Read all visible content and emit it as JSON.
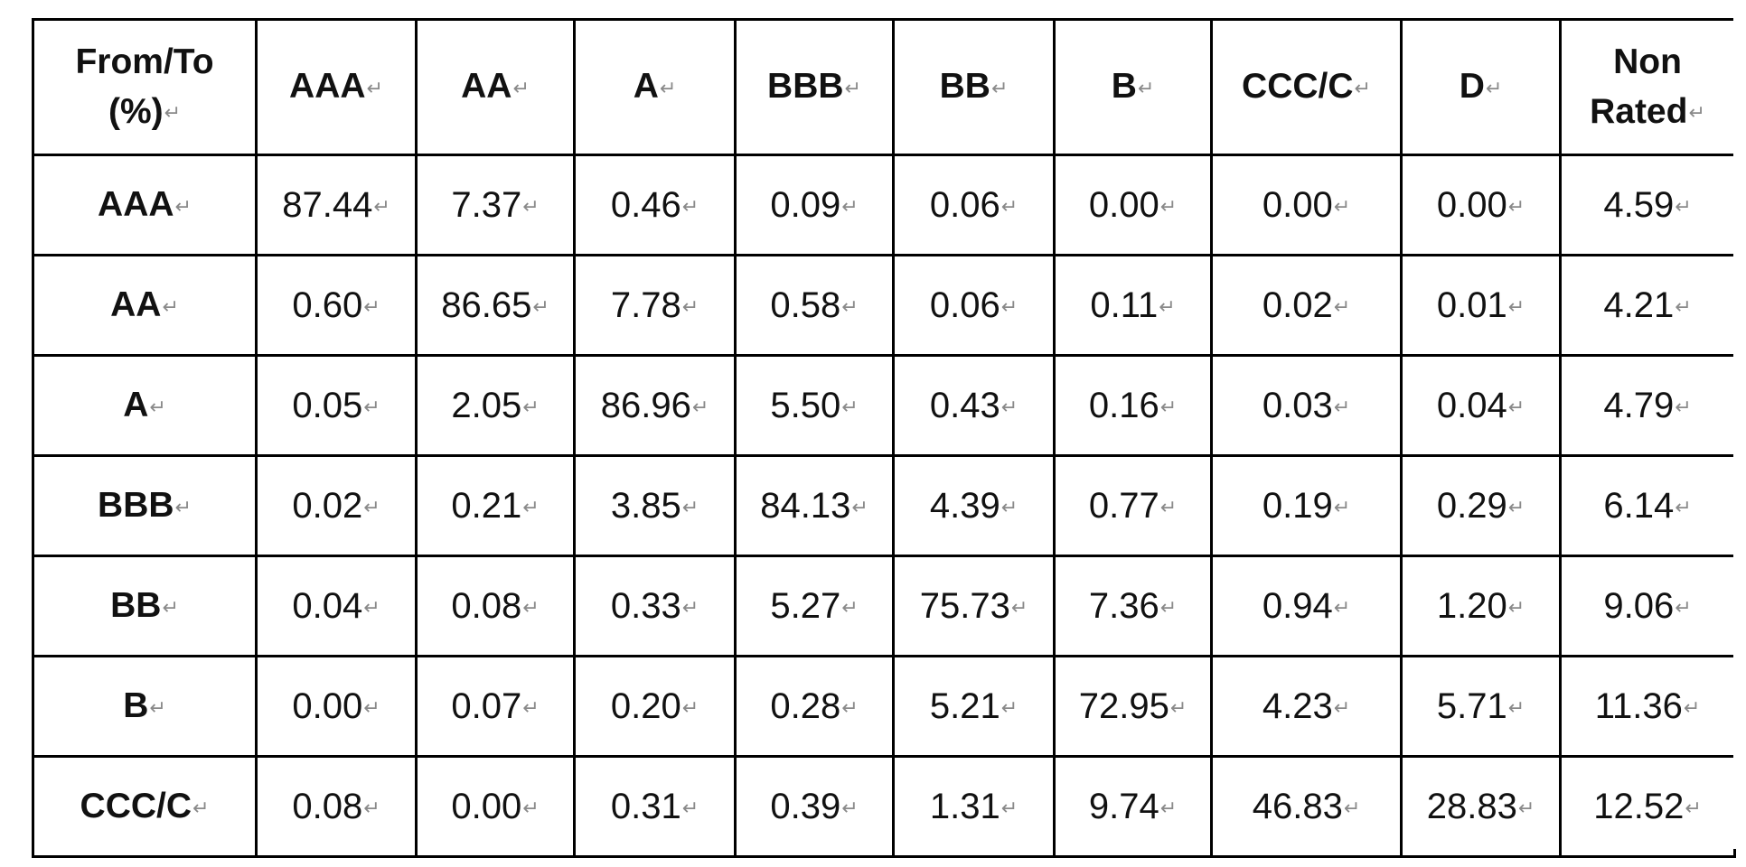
{
  "table": {
    "corner_header": {
      "line1": "From/To",
      "line2": "(%)"
    },
    "column_headers": [
      "AAA",
      "AA",
      "A",
      "BBB",
      "BB",
      "B",
      "CCC/C",
      "D"
    ],
    "last_column_header": {
      "line1": "Non",
      "line2": "Rated"
    },
    "paragraph_mark": "↵",
    "rows": [
      {
        "label": "AAA",
        "values": [
          "87.44",
          "7.37",
          "0.46",
          "0.09",
          "0.06",
          "0.00",
          "0.00",
          "0.00",
          "4.59"
        ]
      },
      {
        "label": "AA",
        "values": [
          "0.60",
          "86.65",
          "7.78",
          "0.58",
          "0.06",
          "0.11",
          "0.02",
          "0.01",
          "4.21"
        ]
      },
      {
        "label": "A",
        "values": [
          "0.05",
          "2.05",
          "86.96",
          "5.50",
          "0.43",
          "0.16",
          "0.03",
          "0.04",
          "4.79"
        ]
      },
      {
        "label": "BBB",
        "values": [
          "0.02",
          "0.21",
          "3.85",
          "84.13",
          "4.39",
          "0.77",
          "0.19",
          "0.29",
          "6.14"
        ]
      },
      {
        "label": "BB",
        "values": [
          "0.04",
          "0.08",
          "0.33",
          "5.27",
          "75.73",
          "7.36",
          "0.94",
          "1.20",
          "9.06"
        ]
      },
      {
        "label": "B",
        "values": [
          "0.00",
          "0.07",
          "0.20",
          "0.28",
          "5.21",
          "72.95",
          "4.23",
          "5.71",
          "11.36"
        ]
      },
      {
        "label": "CCC/C",
        "values": [
          "0.08",
          "0.00",
          "0.31",
          "0.39",
          "1.31",
          "9.74",
          "46.83",
          "28.83",
          "12.52"
        ]
      }
    ]
  }
}
